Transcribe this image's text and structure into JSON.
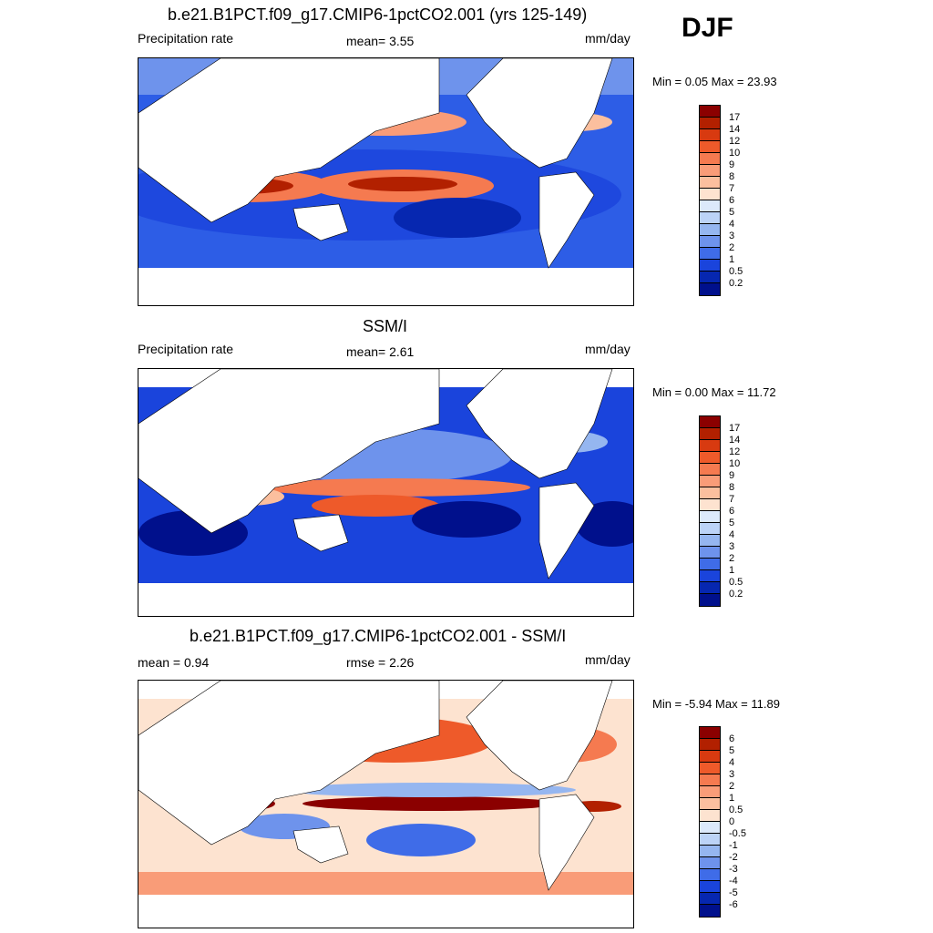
{
  "season": "DJF",
  "panels": [
    {
      "title": "b.e21.B1PCT.f09_g17.CMIP6-1pctCO2.001 (yrs 125-149)",
      "left_label": "Precipitation rate",
      "center_label": "mean=   3.55",
      "units": "mm/day",
      "minmax": "Min =   0.05 Max =  23.93",
      "colorbar_labels": [
        "17",
        "14",
        "12",
        "10",
        "9",
        "8",
        "7",
        "6",
        "5",
        "4",
        "3",
        "2",
        "1",
        "0.5",
        "0.2"
      ],
      "colorbar_colors": [
        "#8b0000",
        "#b22000",
        "#d83a10",
        "#ee5a2a",
        "#f57a50",
        "#f99c78",
        "#fbbf9e",
        "#fde3d0",
        "#dce9fb",
        "#bcd3f7",
        "#95b6f0",
        "#6e93ec",
        "#3f6ce8",
        "#1a44dc",
        "#0627b0",
        "#00108c"
      ]
    },
    {
      "title": "SSM/I",
      "left_label": "Precipitation rate",
      "center_label": "mean=   2.61",
      "units": "mm/day",
      "minmax": "Min =   0.00 Max =  11.72",
      "colorbar_labels": [
        "17",
        "14",
        "12",
        "10",
        "9",
        "8",
        "7",
        "6",
        "5",
        "4",
        "3",
        "2",
        "1",
        "0.5",
        "0.2"
      ],
      "colorbar_colors": [
        "#8b0000",
        "#b22000",
        "#d83a10",
        "#ee5a2a",
        "#f57a50",
        "#f99c78",
        "#fbbf9e",
        "#fde3d0",
        "#dce9fb",
        "#bcd3f7",
        "#95b6f0",
        "#6e93ec",
        "#3f6ce8",
        "#1a44dc",
        "#0627b0",
        "#00108c"
      ]
    },
    {
      "title": "b.e21.B1PCT.f09_g17.CMIP6-1pctCO2.001 - SSM/I",
      "left_label": "mean =   0.94",
      "center_label": "rmse =   2.26",
      "units": "mm/day",
      "minmax": "Min =  -5.94  Max =  11.89",
      "colorbar_labels": [
        "6",
        "5",
        "4",
        "3",
        "2",
        "1",
        "0.5",
        "0",
        "-0.5",
        "-1",
        "-2",
        "-3",
        "-4",
        "-5",
        "-6"
      ],
      "colorbar_colors": [
        "#8b0000",
        "#b22000",
        "#d83a10",
        "#ee5a2a",
        "#f57a50",
        "#f99c78",
        "#fbbf9e",
        "#fde3d0",
        "#dce9fb",
        "#bcd3f7",
        "#95b6f0",
        "#6e93ec",
        "#3f6ce8",
        "#1a44dc",
        "#0627b0",
        "#00108c"
      ]
    }
  ],
  "colors": {
    "land": "#ffffff",
    "coast": "#000000"
  }
}
